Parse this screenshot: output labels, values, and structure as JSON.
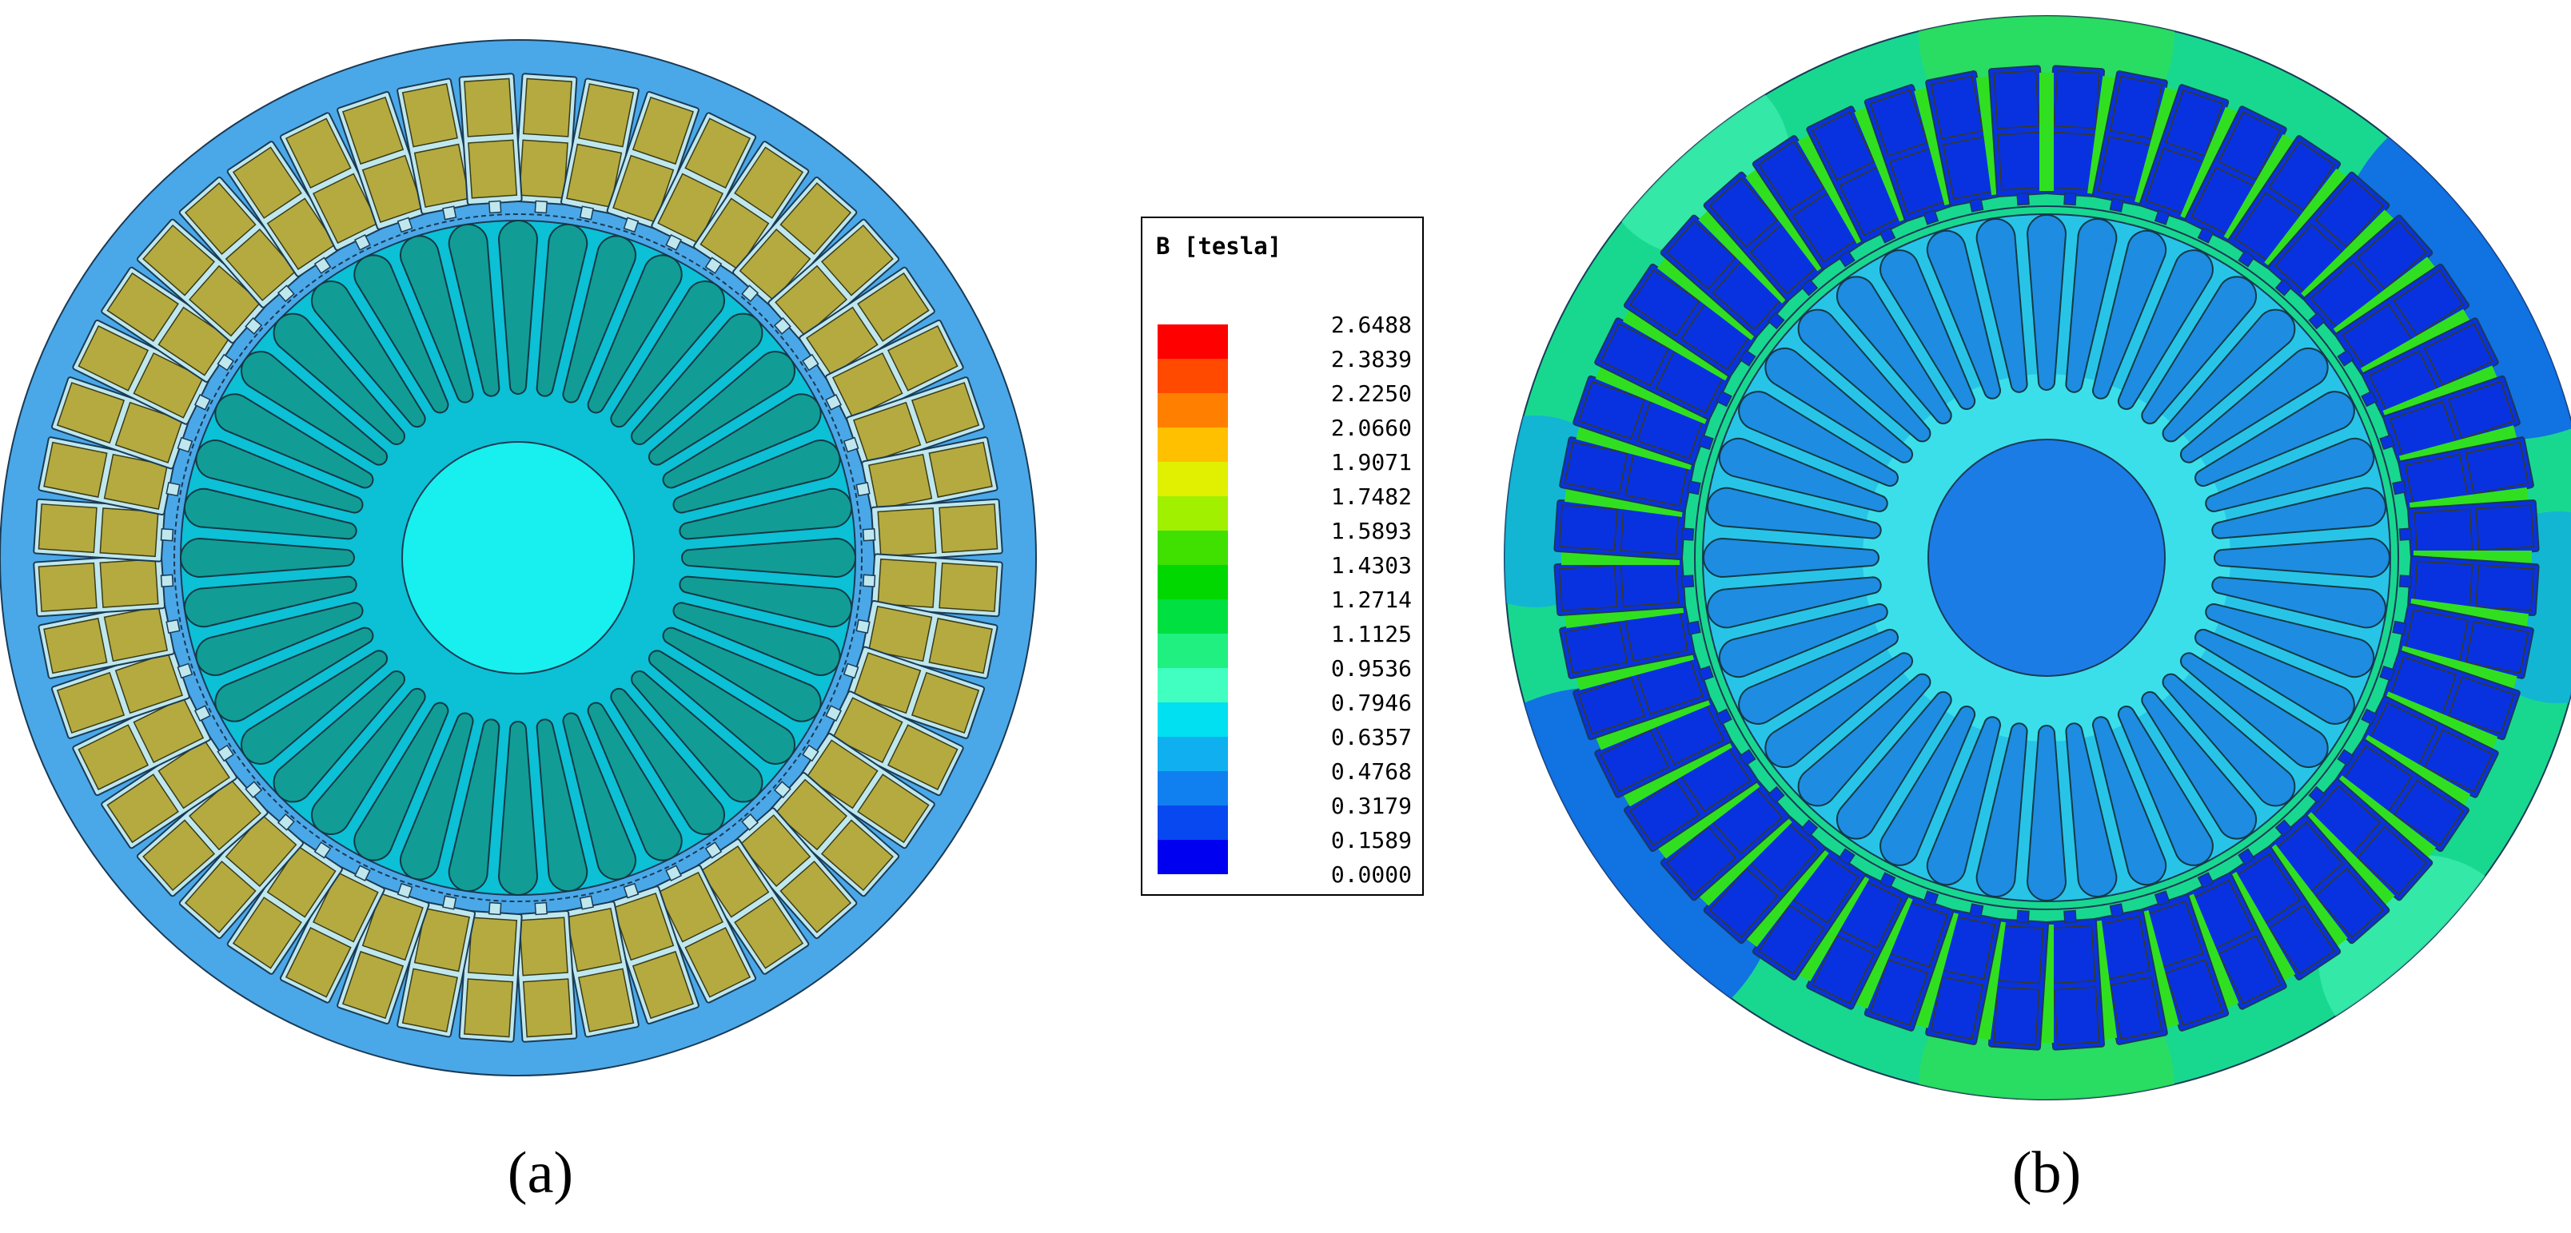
{
  "panels": {
    "a": {
      "label": "(a)"
    },
    "b": {
      "label": "(b)"
    }
  },
  "legend": {
    "title": "B [tesla]",
    "values": [
      "2.6488",
      "2.3839",
      "2.2250",
      "2.0660",
      "1.9071",
      "1.7482",
      "1.5893",
      "1.4303",
      "1.2714",
      "1.1125",
      "0.9536",
      "0.7946",
      "0.6357",
      "0.4768",
      "0.3179",
      "0.1589",
      "0.0000"
    ],
    "colors": [
      "#ff0000",
      "#ff4a00",
      "#ff8000",
      "#ffc000",
      "#e0f000",
      "#a0f000",
      "#40e000",
      "#00d800",
      "#00e040",
      "#20f080",
      "#40ffc0",
      "#00e0f0",
      "#10b0f0",
      "#1080f0",
      "#0848f0",
      "#0000f0"
    ]
  },
  "colors": {
    "stator_a": "#4aa8e8",
    "rotor_a": "#0cc0d6",
    "bar_a": "#129c96",
    "shaft_a": "#17f0ee",
    "coil_a": "#b4aa40",
    "slot_a": "#bfe7ee",
    "stator_b": "#18d890",
    "stator_b_outer": "#22d860",
    "slot_b": "#0832e0",
    "tooth_b": "#30e020",
    "rotor_b": "#28c4e8",
    "bar_b": "#1e8ce0",
    "shaft_b": "#1c7ce6"
  }
}
